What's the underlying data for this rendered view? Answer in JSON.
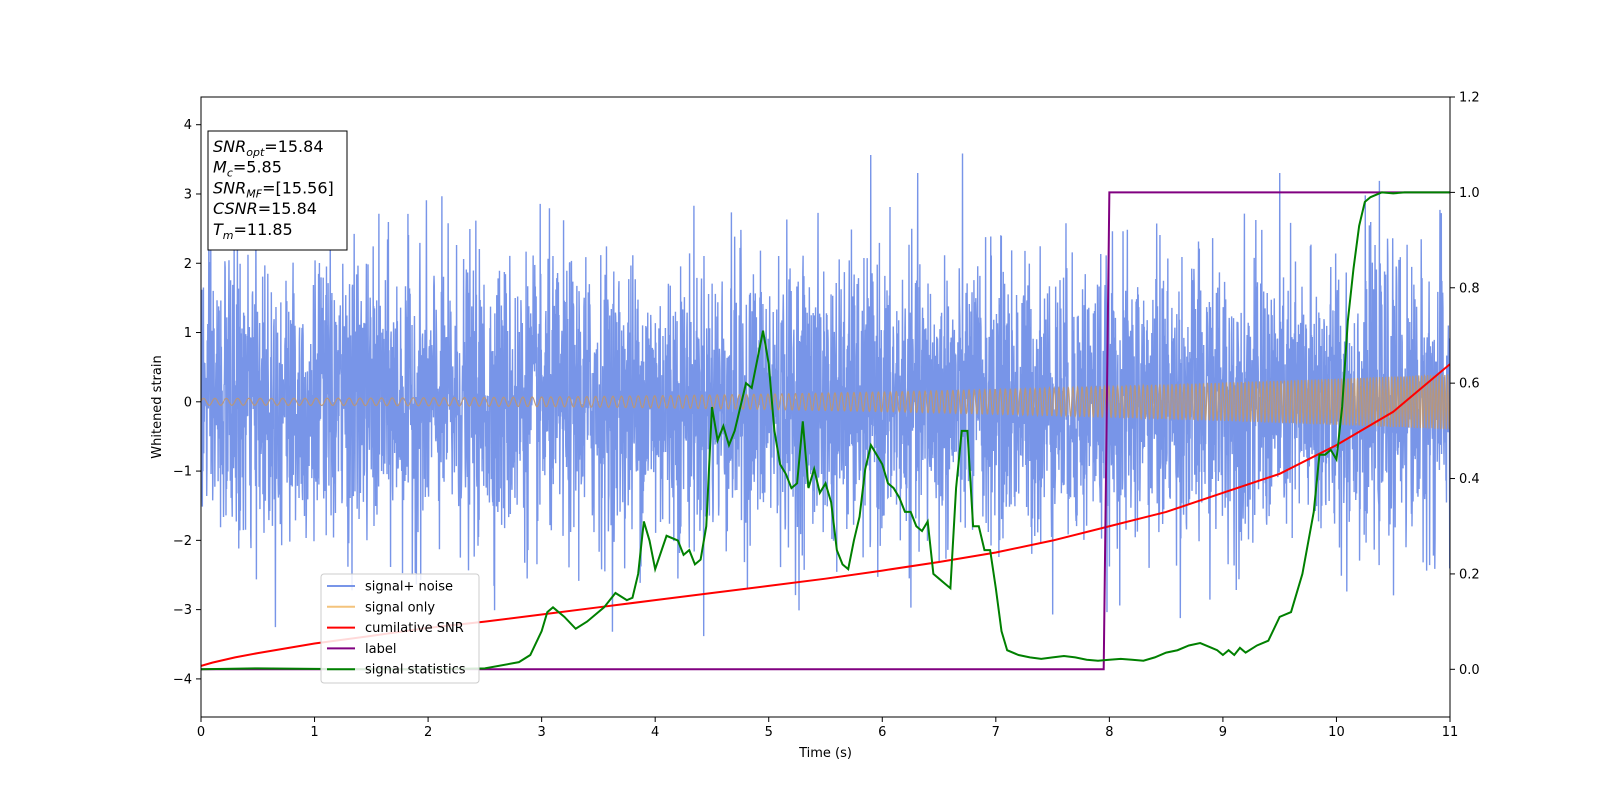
{
  "chart_data": {
    "type": "line",
    "xlabel": "Time (s)",
    "ylabel": "Whitened strain",
    "xlim": [
      0,
      11
    ],
    "ylim": [
      -4.55,
      4.4
    ],
    "y2lim": [
      -0.1,
      1.2
    ],
    "x_ticks": [
      0,
      1,
      2,
      3,
      4,
      5,
      6,
      7,
      8,
      9,
      10,
      11
    ],
    "y_ticks": [
      -4,
      -3,
      -2,
      -1,
      0,
      1,
      2,
      3,
      4
    ],
    "y2_ticks": [
      0.0,
      0.2,
      0.4,
      0.6,
      0.8,
      1.0,
      1.2
    ],
    "grid": false,
    "legend_position": "lower-left",
    "series": [
      {
        "name": "signal+ noise",
        "color": "#7895e8",
        "axis": "left",
        "kind": "noise",
        "std": 1.0,
        "range": [
          -3.7,
          4.0
        ]
      },
      {
        "name": "signal only",
        "color": "#f4c37c",
        "overlap_color": "#b99677",
        "axis": "left",
        "kind": "chirp",
        "amplitude_start": 0.05,
        "amplitude_end": 0.4,
        "freq_start": 10,
        "freq_end": 40
      },
      {
        "name": "cumilative SNR",
        "color": "#ff0000",
        "axis": "right",
        "x": [
          0,
          0.1,
          0.3,
          0.5,
          1,
          1.5,
          2,
          2.5,
          3,
          3.5,
          4,
          4.5,
          5,
          5.5,
          6,
          6.5,
          7,
          7.5,
          8,
          8.5,
          9,
          9.5,
          10,
          10.5,
          11
        ],
        "values": [
          0.007,
          0.014,
          0.025,
          0.034,
          0.054,
          0.07,
          0.087,
          0.1,
          0.115,
          0.13,
          0.145,
          0.16,
          0.175,
          0.19,
          0.207,
          0.225,
          0.245,
          0.27,
          0.3,
          0.33,
          0.37,
          0.41,
          0.47,
          0.54,
          0.64
        ]
      },
      {
        "name": "label",
        "color": "#800080",
        "axis": "right",
        "x": [
          0,
          7.95,
          8.0,
          11
        ],
        "values": [
          0.0,
          0.0,
          1.0,
          1.0
        ]
      },
      {
        "name": "signal statistics",
        "color": "#008000",
        "axis": "right",
        "x": [
          0,
          0.5,
          1,
          1.5,
          2,
          2.5,
          2.8,
          2.9,
          3.0,
          3.05,
          3.1,
          3.2,
          3.3,
          3.4,
          3.55,
          3.65,
          3.75,
          3.8,
          3.85,
          3.9,
          3.95,
          4.0,
          4.1,
          4.2,
          4.25,
          4.3,
          4.35,
          4.4,
          4.45,
          4.5,
          4.55,
          4.6,
          4.65,
          4.7,
          4.75,
          4.8,
          4.85,
          4.9,
          4.95,
          5.0,
          5.05,
          5.1,
          5.15,
          5.2,
          5.25,
          5.3,
          5.35,
          5.4,
          5.45,
          5.5,
          5.55,
          5.6,
          5.65,
          5.7,
          5.75,
          5.8,
          5.85,
          5.9,
          5.95,
          6.0,
          6.05,
          6.1,
          6.15,
          6.2,
          6.25,
          6.3,
          6.35,
          6.4,
          6.45,
          6.5,
          6.55,
          6.6,
          6.65,
          6.7,
          6.75,
          6.8,
          6.85,
          6.9,
          6.95,
          7.0,
          7.05,
          7.1,
          7.2,
          7.3,
          7.4,
          7.5,
          7.6,
          7.7,
          7.8,
          7.9,
          8.0,
          8.1,
          8.2,
          8.3,
          8.4,
          8.5,
          8.6,
          8.7,
          8.8,
          8.9,
          8.95,
          9.0,
          9.05,
          9.1,
          9.15,
          9.2,
          9.3,
          9.4,
          9.5,
          9.6,
          9.7,
          9.8,
          9.85,
          9.9,
          9.95,
          10.0,
          10.05,
          10.1,
          10.15,
          10.2,
          10.25,
          10.3,
          10.4,
          10.5,
          10.6,
          10.8,
          11.0
        ],
        "values": [
          0.0,
          0.002,
          0.001,
          0.0,
          0.0,
          0.002,
          0.015,
          0.03,
          0.08,
          0.12,
          0.13,
          0.11,
          0.085,
          0.1,
          0.13,
          0.16,
          0.145,
          0.15,
          0.2,
          0.31,
          0.27,
          0.21,
          0.28,
          0.27,
          0.24,
          0.25,
          0.22,
          0.23,
          0.3,
          0.55,
          0.48,
          0.51,
          0.47,
          0.5,
          0.55,
          0.6,
          0.59,
          0.65,
          0.71,
          0.64,
          0.5,
          0.43,
          0.41,
          0.38,
          0.39,
          0.52,
          0.38,
          0.42,
          0.37,
          0.39,
          0.35,
          0.25,
          0.22,
          0.21,
          0.27,
          0.32,
          0.42,
          0.47,
          0.45,
          0.43,
          0.39,
          0.38,
          0.36,
          0.33,
          0.33,
          0.3,
          0.29,
          0.31,
          0.2,
          0.19,
          0.18,
          0.17,
          0.38,
          0.5,
          0.5,
          0.3,
          0.3,
          0.25,
          0.25,
          0.17,
          0.08,
          0.04,
          0.03,
          0.025,
          0.022,
          0.025,
          0.028,
          0.025,
          0.02,
          0.018,
          0.02,
          0.022,
          0.02,
          0.018,
          0.025,
          0.035,
          0.04,
          0.05,
          0.055,
          0.045,
          0.04,
          0.03,
          0.04,
          0.03,
          0.045,
          0.035,
          0.05,
          0.06,
          0.11,
          0.12,
          0.2,
          0.33,
          0.45,
          0.45,
          0.46,
          0.44,
          0.55,
          0.73,
          0.84,
          0.93,
          0.98,
          0.99,
          1.0,
          0.998,
          1.0,
          1.0,
          1.0
        ]
      }
    ],
    "annotation": {
      "lines": [
        {
          "name": "SNR",
          "sub": "opt",
          "value": "=15.84"
        },
        {
          "name": "M",
          "sub": "c",
          "value": "=5.85"
        },
        {
          "name": "SNR",
          "sub": "MF",
          "value": "=[15.56]"
        },
        {
          "name": "CSNR",
          "sub": "",
          "value": "=15.84"
        },
        {
          "name": "T",
          "sub": "m",
          "value": "=11.85"
        }
      ]
    }
  }
}
